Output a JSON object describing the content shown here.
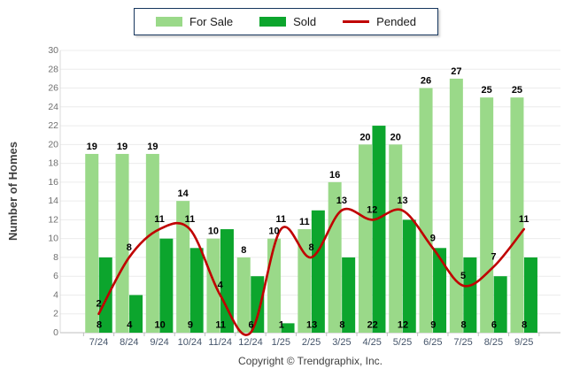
{
  "legend": {
    "for_sale": "For Sale",
    "sold": "Sold",
    "pended": "Pended"
  },
  "footer": "Copyright © Trendgraphix, Inc.",
  "colors": {
    "for_sale": "#9ad989",
    "sold": "#0ca52d",
    "pended": "#c00000",
    "grid": "#ececec",
    "axis": "#bfbfbf",
    "left_axis": "#d9d9d9",
    "ytick_text": "#6f6f6f",
    "xtick_text": "#44546a",
    "legend_border": "#17375e"
  },
  "chart_data": {
    "type": "bar+line",
    "title": "",
    "ylabel": "Number of Homes",
    "xlabel": "",
    "ylim": [
      0,
      30
    ],
    "ytick_step": 2,
    "grid": true,
    "legend_position": "top-center",
    "categories": [
      "7/24",
      "8/24",
      "9/24",
      "10/24",
      "11/24",
      "12/24",
      "1/25",
      "2/25",
      "3/25",
      "4/25",
      "5/25",
      "6/25",
      "7/25",
      "8/25",
      "9/25"
    ],
    "series": [
      {
        "name": "For Sale",
        "type": "bar",
        "color": "#9ad989",
        "values": [
          19,
          19,
          19,
          14,
          10,
          8,
          10,
          11,
          16,
          20,
          20,
          26,
          27,
          25,
          25
        ]
      },
      {
        "name": "Sold",
        "type": "bar",
        "color": "#0ca52d",
        "values": [
          8,
          4,
          10,
          9,
          11,
          6,
          1,
          13,
          8,
          22,
          12,
          9,
          8,
          6,
          8
        ]
      },
      {
        "name": "Pended",
        "type": "line",
        "color": "#c00000",
        "values": [
          2,
          8,
          11,
          11,
          4,
          0,
          11,
          8,
          13,
          12,
          13,
          9,
          5,
          7,
          11
        ],
        "label_hidden_at": [
          5
        ]
      }
    ]
  }
}
